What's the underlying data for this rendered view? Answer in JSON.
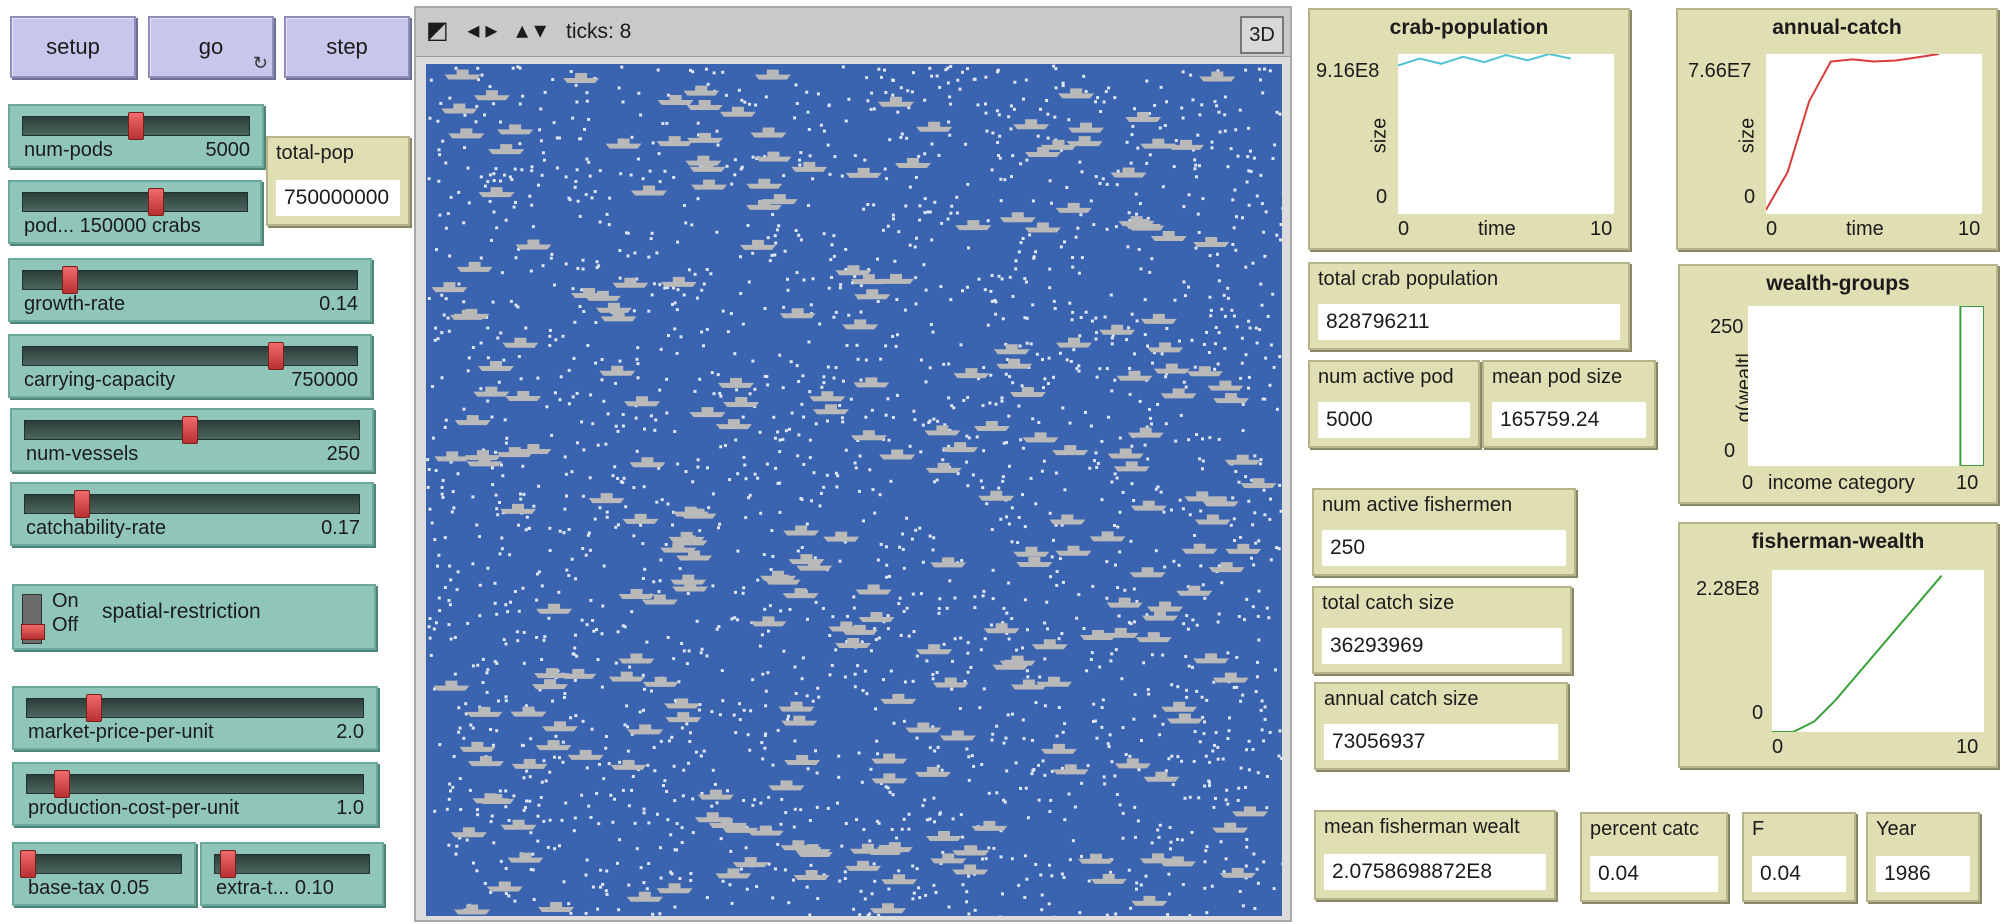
{
  "buttons": {
    "setup": "setup",
    "go": "go",
    "go_forever_icon": "↻",
    "step": "step"
  },
  "sliders": {
    "num_pods": {
      "label": "num-pods",
      "value": "5000"
    },
    "pod_size": {
      "label": "pod... 150000 crabs",
      "value": ""
    },
    "growth_rate": {
      "label": "growth-rate",
      "value": "0.14"
    },
    "carrying_capacity": {
      "label": "carrying-capacity",
      "value": "750000"
    },
    "num_vessels": {
      "label": "num-vessels",
      "value": "250"
    },
    "catchability_rate": {
      "label": "catchability-rate",
      "value": "0.17"
    },
    "market_price": {
      "label": "market-price-per-unit",
      "value": "2.0"
    },
    "production_cost": {
      "label": "production-cost-per-unit",
      "value": "1.0"
    },
    "base_tax": {
      "label": "base-tax 0.05",
      "value": ""
    },
    "extra_tax": {
      "label": "extra-t... 0.10",
      "value": ""
    }
  },
  "switch": {
    "on": "On",
    "off": "Off",
    "label": "spatial-restriction"
  },
  "monitors": {
    "total_pop": {
      "label": "total-pop",
      "value": "750000000"
    },
    "total_crab_population": {
      "label": "total crab population",
      "value": "828796211"
    },
    "num_active_pods": {
      "label": "num active pod",
      "value": "5000"
    },
    "mean_pod_size": {
      "label": "mean pod size",
      "value": "165759.24"
    },
    "num_active_fishermen": {
      "label": "num active fishermen",
      "value": "250"
    },
    "total_catch_size": {
      "label": "total catch size",
      "value": "36293969"
    },
    "annual_catch_size": {
      "label": "annual catch size",
      "value": "73056937"
    },
    "mean_fisherman_wealth": {
      "label": "mean fisherman wealt",
      "value": "2.0758698872E8"
    },
    "percent_catch": {
      "label": "percent catc",
      "value": "0.04"
    },
    "f": {
      "label": "F",
      "value": "0.04"
    },
    "year": {
      "label": "Year",
      "value": "1986"
    }
  },
  "view": {
    "ticks": "ticks: 8",
    "btn3d": "3D",
    "nav_icons": "◩ ◂▸ ▴▾"
  },
  "plots": {
    "crab_population": {
      "title": "crab-population",
      "ymax": "9.16E8",
      "ymin": "0",
      "xmin": "0",
      "xmax": "10",
      "xlabel": "time",
      "ylabel": "size",
      "color": "#4ec3d6"
    },
    "annual_catch": {
      "title": "annual-catch",
      "ymax": "7.66E7",
      "ymin": "0",
      "xmin": "0",
      "xmax": "10",
      "xlabel": "time",
      "ylabel": "size",
      "color": "#d93b3b"
    },
    "wealth_groups": {
      "title": "wealth-groups",
      "ymax": "250",
      "ymin": "0",
      "xmin": "0",
      "xmax": "10",
      "xlabel": "income category",
      "ylabel": "g(wealt|",
      "color": "#3aa13a"
    },
    "fisherman_wealth": {
      "title": "fisherman-wealth",
      "ymax": "2.28E8",
      "ymin": "0",
      "xmin": "0",
      "xmax": "10",
      "xlabel": "",
      "ylabel": "",
      "color": "#3aa13a"
    }
  },
  "chart_data": [
    {
      "type": "line",
      "title": "crab-population",
      "x": [
        0,
        1,
        2,
        3,
        4,
        5,
        6,
        7,
        8
      ],
      "y": [
        850000000.0,
        890000000.0,
        860000000.0,
        900000000.0,
        870000000.0,
        910000000.0,
        880000000.0,
        916000000.0,
        890000000.0
      ],
      "xlim": [
        0,
        10
      ],
      "ylim": [
        0,
        916000000.0
      ]
    },
    {
      "type": "line",
      "title": "annual-catch",
      "x": [
        0,
        1,
        2,
        3,
        4,
        5,
        6,
        7,
        8
      ],
      "y": [
        2000000.0,
        20000000.0,
        54000000.0,
        73000000.0,
        74000000.0,
        73000000.0,
        73500000.0,
        75000000.0,
        76600000.0
      ],
      "xlim": [
        0,
        10
      ],
      "ylim": [
        0,
        76600000.0
      ]
    },
    {
      "type": "bar",
      "title": "wealth-groups",
      "x": [
        9
      ],
      "y": [
        250
      ],
      "xlim": [
        0,
        10
      ],
      "ylim": [
        0,
        250
      ]
    },
    {
      "type": "line",
      "title": "fisherman-wealth",
      "x": [
        0,
        1,
        2,
        3,
        4,
        5,
        6,
        7,
        8
      ],
      "y": [
        0,
        0,
        15000000.0,
        45000000.0,
        80000000.0,
        115000000.0,
        150000000.0,
        185000000.0,
        220000000.0
      ],
      "xlim": [
        0,
        10
      ],
      "ylim": [
        0,
        228000000.0
      ]
    }
  ]
}
